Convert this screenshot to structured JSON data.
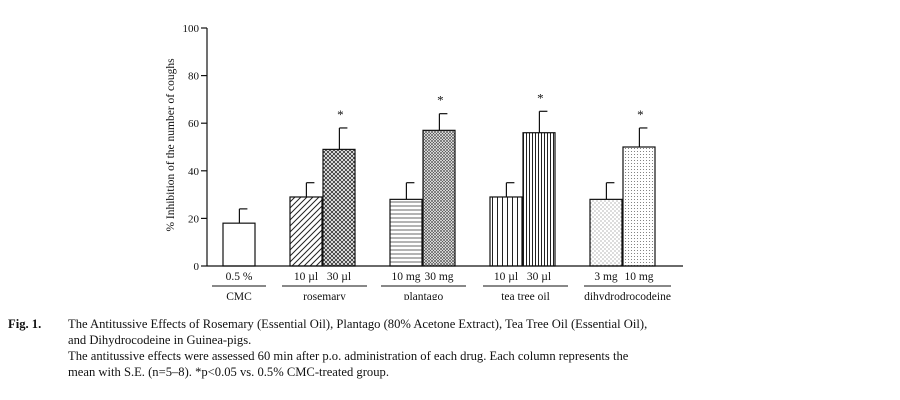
{
  "chart_data": {
    "type": "bar",
    "ylabel": "% Inhibition of the number of coughs",
    "ylim": [
      0,
      100
    ],
    "yticks": [
      0,
      20,
      40,
      60,
      80,
      100
    ],
    "groups": [
      {
        "name": "CMC",
        "bars": [
          {
            "dose": "0.5 %",
            "value": 18,
            "se": 6,
            "sig": false,
            "pattern": "none"
          }
        ]
      },
      {
        "name": "rosemary",
        "bars": [
          {
            "dose": "10 µl",
            "value": 29,
            "se": 6,
            "sig": false,
            "pattern": "diag"
          },
          {
            "dose": "30 µl",
            "value": 49,
            "se": 9,
            "sig": true,
            "pattern": "cross"
          }
        ]
      },
      {
        "name": "plantago",
        "bars": [
          {
            "dose": "10 mg",
            "value": 28,
            "se": 7,
            "sig": false,
            "pattern": "hlines"
          },
          {
            "dose": "30 mg",
            "value": 57,
            "se": 7,
            "sig": true,
            "pattern": "dense"
          }
        ]
      },
      {
        "name": "tea tree oil",
        "bars": [
          {
            "dose": "10 µl",
            "value": 29,
            "se": 6,
            "sig": false,
            "pattern": "vlines"
          },
          {
            "dose": "30 µl",
            "value": 56,
            "se": 9,
            "sig": true,
            "pattern": "vdense"
          }
        ]
      },
      {
        "name": "dihydrodrocodeine",
        "bars": [
          {
            "dose": "3 mg",
            "value": 28,
            "se": 7,
            "sig": false,
            "pattern": "dots"
          },
          {
            "dose": "10 mg",
            "value": 50,
            "se": 8,
            "sig": true,
            "pattern": "dots2"
          }
        ]
      }
    ],
    "significance_marker": "*"
  },
  "caption": {
    "label": "Fig. 1.",
    "line1": "The Antitussive Effects of Rosemary (Essential Oil), Plantago (80% Acetone Extract), Tea Tree Oil (Essential Oil),",
    "line2": "and Dihydrocodeine in Guinea-pigs.",
    "line3": "The antitussive effects were assessed 60 min after p.o. administration of each drug. Each column represents the",
    "line4": "mean with S.E. (n=5–8). *p<0.05 vs. 0.5% CMC-treated group."
  }
}
